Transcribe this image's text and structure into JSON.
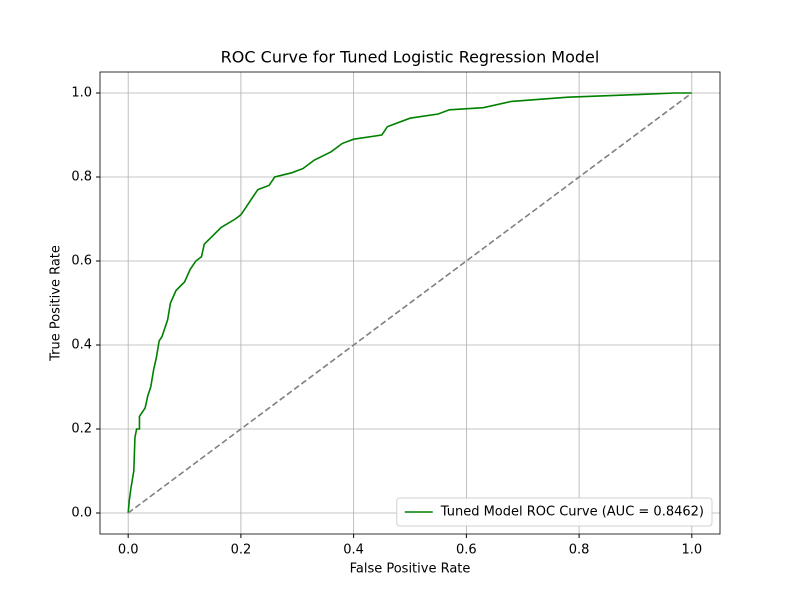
{
  "chart_data": {
    "type": "line",
    "title": "ROC Curve for Tuned Logistic Regression Model",
    "xlabel": "False Positive Rate",
    "ylabel": "True Positive Rate",
    "xlim": [
      -0.05,
      1.05
    ],
    "ylim": [
      -0.05,
      1.05
    ],
    "xticks": [
      {
        "value": 0,
        "label": "0.0"
      },
      0.2,
      0.4,
      0.6,
      0.8,
      {
        "value": 1,
        "label": "1.0"
      }
    ],
    "yticks": [
      {
        "value": 0,
        "label": "0.0"
      },
      0.2,
      0.4,
      0.6,
      0.8,
      {
        "value": 1,
        "label": "1.0"
      }
    ],
    "grid": true,
    "legend": "lower right",
    "series": [
      {
        "name": "Tuned Model ROC Curve (AUC = 0.8462)",
        "color": "#008000",
        "style": "solid",
        "x": [
          0,
          0.002,
          0.005,
          0.01,
          0.012,
          0.015,
          0.02,
          0.02,
          0.03,
          0.035,
          0.04,
          0.045,
          0.05,
          0.055,
          0.06,
          0.07,
          0.075,
          0.085,
          0.1,
          0.11,
          0.12,
          0.13,
          0.135,
          0.15,
          0.165,
          0.19,
          0.2,
          0.21,
          0.22,
          0.23,
          0.25,
          0.26,
          0.29,
          0.31,
          0.33,
          0.36,
          0.38,
          0.4,
          0.45,
          0.46,
          0.5,
          0.55,
          0.57,
          0.63,
          0.68,
          0.78,
          0.88,
          0.97,
          1
        ],
        "values": [
          0,
          0.03,
          0.06,
          0.1,
          0.18,
          0.2,
          0.2,
          0.23,
          0.25,
          0.28,
          0.3,
          0.34,
          0.37,
          0.41,
          0.42,
          0.46,
          0.5,
          0.53,
          0.55,
          0.58,
          0.6,
          0.61,
          0.64,
          0.66,
          0.68,
          0.7,
          0.71,
          0.73,
          0.75,
          0.77,
          0.78,
          0.8,
          0.81,
          0.82,
          0.84,
          0.86,
          0.88,
          0.89,
          0.9,
          0.92,
          0.94,
          0.95,
          0.96,
          0.965,
          0.98,
          0.99,
          0.995,
          1,
          1
        ]
      },
      {
        "color": "#808080",
        "style": "dashed",
        "x": [
          0,
          1
        ],
        "values": [
          0,
          1
        ]
      }
    ]
  }
}
